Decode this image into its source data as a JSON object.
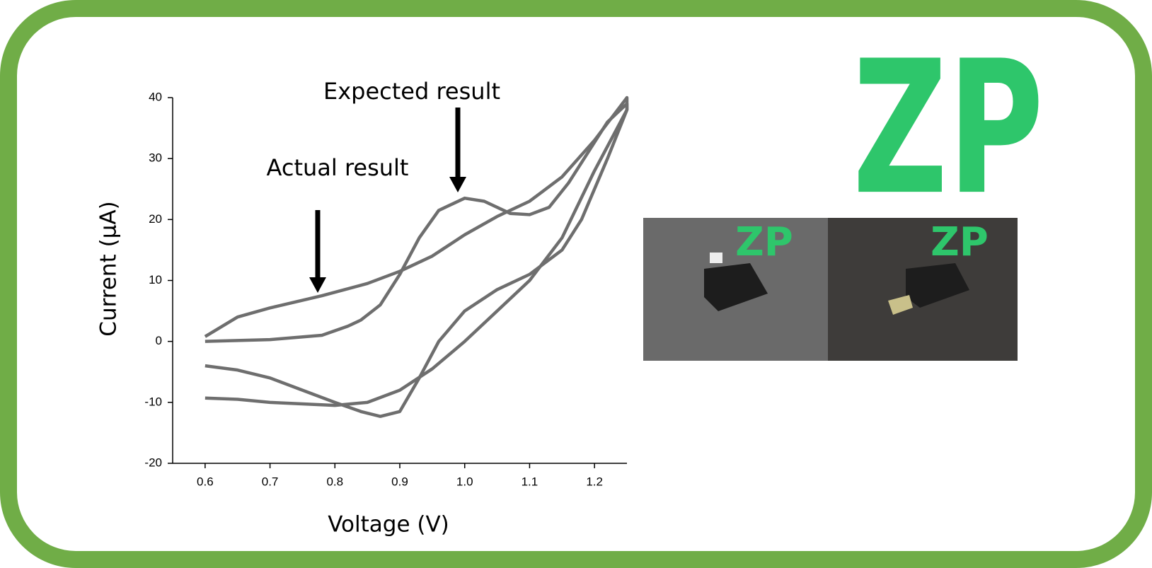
{
  "chart_data": {
    "type": "line",
    "annotations": [
      "Expected result",
      "Actual result"
    ],
    "xlabel": "Voltage (V)",
    "ylabel": "Current (μA)",
    "xlim": [
      0.55,
      1.25
    ],
    "ylim": [
      -20,
      40
    ],
    "xticks": [
      0.6,
      0.7,
      0.8,
      0.9,
      {
        "value": 1.0,
        "label": "1.0"
      },
      1.1,
      1.2
    ],
    "yticks": [
      -20,
      -10,
      0,
      10,
      20,
      30,
      40
    ],
    "series": [
      {
        "color": "#6e6e6e",
        "x": [
          0.6,
          0.65,
          0.7,
          0.78,
          0.85,
          0.9,
          0.95,
          1.0,
          1.05,
          1.1,
          1.15,
          1.2,
          1.25,
          1.25,
          1.2,
          1.15,
          1.1,
          1.05,
          1.0,
          0.95,
          0.9,
          0.85,
          0.8,
          0.7,
          0.65,
          0.6
        ],
        "values": [
          0.8,
          4,
          5.5,
          7.5,
          9.5,
          11.5,
          14,
          17.5,
          20.5,
          23,
          27,
          33,
          40,
          38,
          28,
          17,
          10,
          5,
          0,
          -4.5,
          -8,
          -10,
          -10.5,
          -10,
          -9.5,
          -9.3
        ]
      },
      {
        "color": "#6e6e6e",
        "x": [
          0.6,
          0.7,
          0.78,
          0.82,
          0.84,
          0.87,
          0.9,
          0.93,
          0.96,
          1.0,
          1.03,
          1.07,
          1.1,
          1.13,
          1.16,
          1.19,
          1.22,
          1.25,
          1.25,
          1.22,
          1.18,
          1.15,
          1.1,
          1.05,
          1.0,
          0.96,
          0.93,
          0.9,
          0.87,
          0.84,
          0.8,
          0.75,
          0.7,
          0.65,
          0.6
        ],
        "values": [
          0,
          0.3,
          1,
          2.5,
          3.5,
          6,
          11,
          17,
          21.5,
          23.5,
          23,
          21,
          20.8,
          22,
          26,
          31,
          36,
          39,
          38,
          30,
          20,
          15,
          11,
          8.5,
          5,
          0,
          -6,
          -11.5,
          -12.3,
          -11.5,
          -10,
          -8,
          -6,
          -4.7,
          -4
        ]
      }
    ]
  },
  "logo": "ZP"
}
